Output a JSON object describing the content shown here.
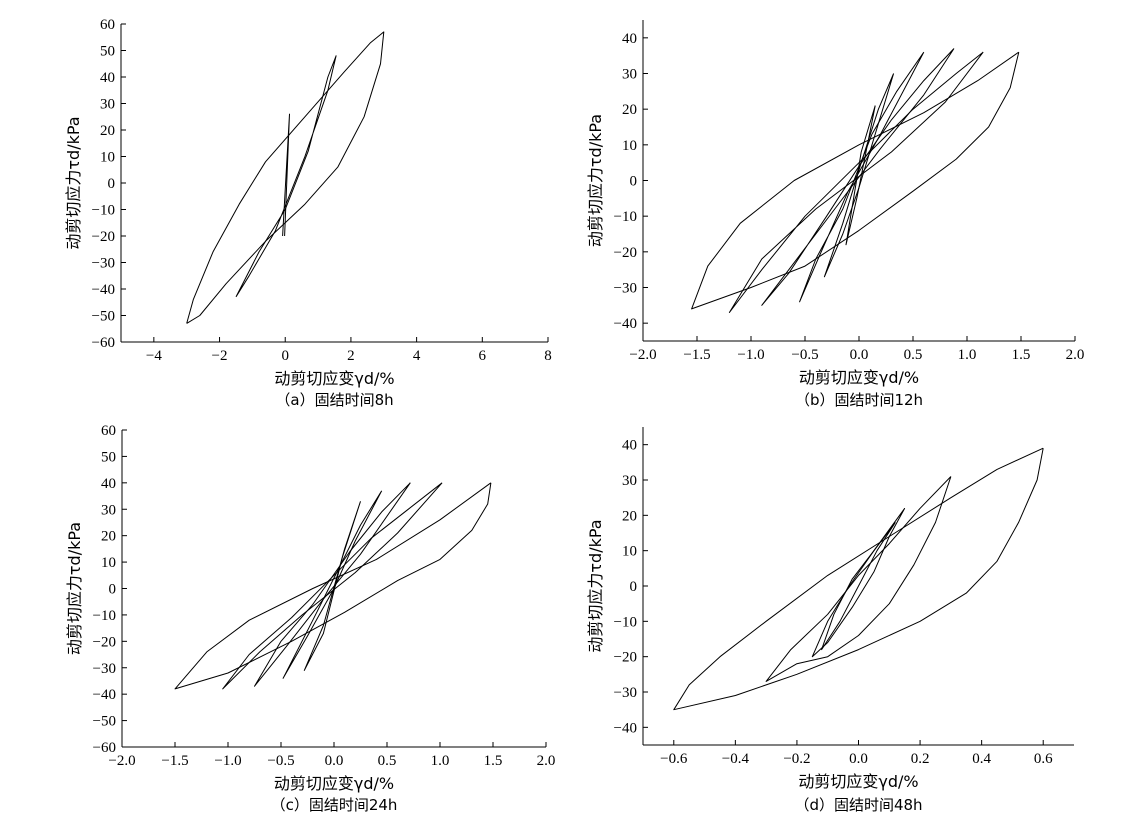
{
  "chart_data": [
    {
      "type": "line",
      "title": "",
      "caption": "（a）固结时间8h",
      "xlabel": "动剪切应变γd/%",
      "ylabel": "动剪切应力τd/kPa",
      "xlim": [
        -5,
        8
      ],
      "ylim": [
        -60,
        60
      ],
      "xticks": [
        -4,
        -2,
        0,
        2,
        4,
        6,
        8
      ],
      "yticks": [
        -60,
        -50,
        -40,
        -30,
        -20,
        -10,
        0,
        10,
        20,
        30,
        40,
        50,
        60
      ],
      "grid": false,
      "series": [
        {
          "values": [
            [
              -0.08,
              -20
            ],
            [
              0.13,
              26
            ],
            [
              -0.02,
              -20
            ]
          ]
        },
        {
          "values": [
            [
              -1.5,
              -43
            ],
            [
              -1.1,
              -35
            ],
            [
              -0.3,
              -18
            ],
            [
              0.6,
              10
            ],
            [
              1.3,
              35
            ],
            [
              1.55,
              48
            ],
            [
              1.3,
              40
            ],
            [
              0.7,
              12
            ],
            [
              0,
              -10
            ],
            [
              -0.8,
              -26
            ],
            [
              -1.5,
              -43
            ]
          ]
        },
        {
          "values": [
            [
              -3,
              -53
            ],
            [
              -2.8,
              -44
            ],
            [
              -2.2,
              -26
            ],
            [
              -1.4,
              -8
            ],
            [
              -0.6,
              8
            ],
            [
              0.6,
              25
            ],
            [
              1.8,
              42
            ],
            [
              2.6,
              53
            ],
            [
              3,
              57
            ],
            [
              2.9,
              45
            ],
            [
              2.4,
              25
            ],
            [
              1.6,
              6
            ],
            [
              0.6,
              -8
            ],
            [
              -0.6,
              -22
            ],
            [
              -1.8,
              -38
            ],
            [
              -2.6,
              -50
            ],
            [
              -3,
              -53
            ]
          ]
        }
      ]
    },
    {
      "type": "line",
      "title": "",
      "caption": "（b）固结时间12h",
      "xlabel": "动剪切应变γd/%",
      "ylabel": "动剪切应力τd/kPa",
      "xlim": [
        -2.0,
        2.0
      ],
      "ylim": [
        -45,
        45
      ],
      "xticks": [
        -2.0,
        -1.5,
        -1.0,
        -0.5,
        0.0,
        0.5,
        1.0,
        1.5,
        2.0
      ],
      "yticks": [
        -40,
        -30,
        -20,
        -10,
        0,
        10,
        20,
        30,
        40
      ],
      "grid": false,
      "series": [
        {
          "values": [
            [
              0.15,
              21
            ],
            [
              0.02,
              8
            ],
            [
              -0.12,
              -18
            ],
            [
              -0.02,
              -5
            ],
            [
              0.15,
              21
            ]
          ]
        },
        {
          "values": [
            [
              0.32,
              30
            ],
            [
              0.18,
              20
            ],
            [
              0.02,
              5
            ],
            [
              -0.15,
              -12
            ],
            [
              -0.32,
              -27
            ],
            [
              -0.15,
              -15
            ],
            [
              0,
              -2
            ],
            [
              0.15,
              13
            ],
            [
              0.32,
              30
            ]
          ]
        },
        {
          "values": [
            [
              0.6,
              36
            ],
            [
              0.35,
              25
            ],
            [
              0.12,
              13
            ],
            [
              -0.15,
              -8
            ],
            [
              -0.4,
              -22
            ],
            [
              -0.55,
              -34
            ],
            [
              -0.35,
              -20
            ],
            [
              -0.1,
              -3
            ],
            [
              0.2,
              13
            ],
            [
              0.6,
              36
            ]
          ]
        },
        {
          "values": [
            [
              0.88,
              37
            ],
            [
              0.6,
              28
            ],
            [
              0.3,
              17
            ],
            [
              0,
              4
            ],
            [
              -0.3,
              -10
            ],
            [
              -0.65,
              -26
            ],
            [
              -0.9,
              -35
            ],
            [
              -0.55,
              -21
            ],
            [
              -0.2,
              -7
            ],
            [
              0.2,
              9
            ],
            [
              0.6,
              24
            ],
            [
              0.88,
              37
            ]
          ]
        },
        {
          "values": [
            [
              1.15,
              36
            ],
            [
              0.9,
              30
            ],
            [
              0.5,
              20
            ],
            [
              0,
              5
            ],
            [
              -0.5,
              -10
            ],
            [
              -0.9,
              -25
            ],
            [
              -1.2,
              -37
            ],
            [
              -0.9,
              -22
            ],
            [
              -0.4,
              -8
            ],
            [
              0.3,
              8
            ],
            [
              0.8,
              22
            ],
            [
              1.15,
              36
            ]
          ]
        },
        {
          "values": [
            [
              1.48,
              36
            ],
            [
              1.4,
              26
            ],
            [
              1.2,
              15
            ],
            [
              0.9,
              6
            ],
            [
              0.5,
              -3
            ],
            [
              0,
              -14
            ],
            [
              -0.5,
              -24
            ],
            [
              -1.0,
              -30
            ],
            [
              -1.55,
              -36
            ],
            [
              -1.4,
              -24
            ],
            [
              -1.1,
              -12
            ],
            [
              -0.6,
              0
            ],
            [
              0,
              10
            ],
            [
              0.6,
              19
            ],
            [
              1.1,
              28
            ],
            [
              1.48,
              36
            ]
          ]
        }
      ]
    },
    {
      "type": "line",
      "title": "",
      "caption": "（c）固结时间24h",
      "xlabel": "动剪切应变γd/%",
      "ylabel": "动剪切应力τd/kPa",
      "xlim": [
        -2.0,
        2.0
      ],
      "ylim": [
        -60,
        60
      ],
      "xticks": [
        -2.0,
        -1.5,
        -1.0,
        -0.5,
        0.0,
        0.5,
        1.0,
        1.5,
        2.0
      ],
      "yticks": [
        -60,
        -50,
        -40,
        -30,
        -20,
        -10,
        0,
        10,
        20,
        30,
        40,
        50,
        60
      ],
      "grid": false,
      "series": [
        {
          "values": [
            [
              0.25,
              33
            ],
            [
              0.1,
              15
            ],
            [
              -0.1,
              -14
            ],
            [
              -0.28,
              -31
            ],
            [
              -0.1,
              -17
            ],
            [
              0.08,
              12
            ],
            [
              0.25,
              33
            ]
          ]
        },
        {
          "values": [
            [
              0.45,
              37
            ],
            [
              0.25,
              24
            ],
            [
              0.05,
              8
            ],
            [
              -0.2,
              -12
            ],
            [
              -0.48,
              -34
            ],
            [
              -0.25,
              -18
            ],
            [
              0,
              0
            ],
            [
              0.2,
              18
            ],
            [
              0.45,
              37
            ]
          ]
        },
        {
          "values": [
            [
              0.72,
              40
            ],
            [
              0.45,
              29
            ],
            [
              0.15,
              14
            ],
            [
              -0.2,
              -6
            ],
            [
              -0.5,
              -20
            ],
            [
              -0.75,
              -37
            ],
            [
              -0.45,
              -22
            ],
            [
              -0.1,
              -4
            ],
            [
              0.25,
              13
            ],
            [
              0.72,
              40
            ]
          ]
        },
        {
          "values": [
            [
              1.02,
              40
            ],
            [
              0.7,
              30
            ],
            [
              0.35,
              19
            ],
            [
              0,
              5
            ],
            [
              -0.4,
              -11
            ],
            [
              -0.8,
              -25
            ],
            [
              -1.05,
              -38
            ],
            [
              -0.7,
              -24
            ],
            [
              -0.3,
              -10
            ],
            [
              0.2,
              6
            ],
            [
              0.6,
              21
            ],
            [
              1.02,
              40
            ]
          ]
        },
        {
          "values": [
            [
              1.48,
              40
            ],
            [
              1.45,
              32
            ],
            [
              1.3,
              22
            ],
            [
              1.0,
              11
            ],
            [
              0.6,
              3
            ],
            [
              0.1,
              -9
            ],
            [
              -0.4,
              -20
            ],
            [
              -1.0,
              -32
            ],
            [
              -1.5,
              -38
            ],
            [
              -1.2,
              -24
            ],
            [
              -0.8,
              -12
            ],
            [
              -0.2,
              0
            ],
            [
              0.4,
              11
            ],
            [
              1.0,
              26
            ],
            [
              1.48,
              40
            ]
          ]
        }
      ]
    },
    {
      "type": "line",
      "title": "",
      "caption": "（d）固结时间48h",
      "xlabel": "动剪切应变γd/%",
      "ylabel": "动剪切应力τd/kPa",
      "xlim": [
        -0.7,
        0.7
      ],
      "ylim": [
        -45,
        45
      ],
      "xticks": [
        -0.6,
        -0.4,
        -0.2,
        0.0,
        0.2,
        0.4,
        0.6
      ],
      "yticks": [
        -40,
        -30,
        -20,
        -10,
        0,
        10,
        20,
        30,
        40
      ],
      "grid": false,
      "series": [
        {
          "values": [
            [
              0.12,
              18
            ],
            [
              0.06,
              10
            ],
            [
              0,
              0
            ],
            [
              -0.06,
              -10
            ],
            [
              -0.12,
              -18
            ],
            [
              -0.08,
              -8
            ],
            [
              -0.02,
              2
            ],
            [
              0.05,
              10
            ],
            [
              0.12,
              18
            ]
          ]
        },
        {
          "values": [
            [
              0.15,
              22
            ],
            [
              0.1,
              14
            ],
            [
              0.05,
              4
            ],
            [
              -0.02,
              -6
            ],
            [
              -0.1,
              -16
            ],
            [
              -0.15,
              -20
            ],
            [
              -0.1,
              -10
            ],
            [
              -0.03,
              0
            ],
            [
              0.05,
              10
            ],
            [
              0.15,
              22
            ]
          ]
        },
        {
          "values": [
            [
              0.3,
              31
            ],
            [
              0.25,
              18
            ],
            [
              0.18,
              6
            ],
            [
              0.1,
              -5
            ],
            [
              0,
              -14
            ],
            [
              -0.1,
              -20
            ],
            [
              -0.2,
              -22
            ],
            [
              -0.3,
              -27
            ],
            [
              -0.22,
              -18
            ],
            [
              -0.1,
              -8
            ],
            [
              0,
              3
            ],
            [
              0.1,
              12
            ],
            [
              0.2,
              22
            ],
            [
              0.3,
              31
            ]
          ]
        },
        {
          "values": [
            [
              0.6,
              39
            ],
            [
              0.58,
              30
            ],
            [
              0.52,
              18
            ],
            [
              0.45,
              7
            ],
            [
              0.35,
              -2
            ],
            [
              0.2,
              -10
            ],
            [
              0,
              -18
            ],
            [
              -0.2,
              -25
            ],
            [
              -0.4,
              -31
            ],
            [
              -0.6,
              -35
            ],
            [
              -0.55,
              -28
            ],
            [
              -0.45,
              -20
            ],
            [
              -0.3,
              -10
            ],
            [
              -0.1,
              3
            ],
            [
              0.1,
              14
            ],
            [
              0.3,
              25
            ],
            [
              0.45,
              33
            ],
            [
              0.6,
              39
            ]
          ]
        }
      ]
    }
  ]
}
